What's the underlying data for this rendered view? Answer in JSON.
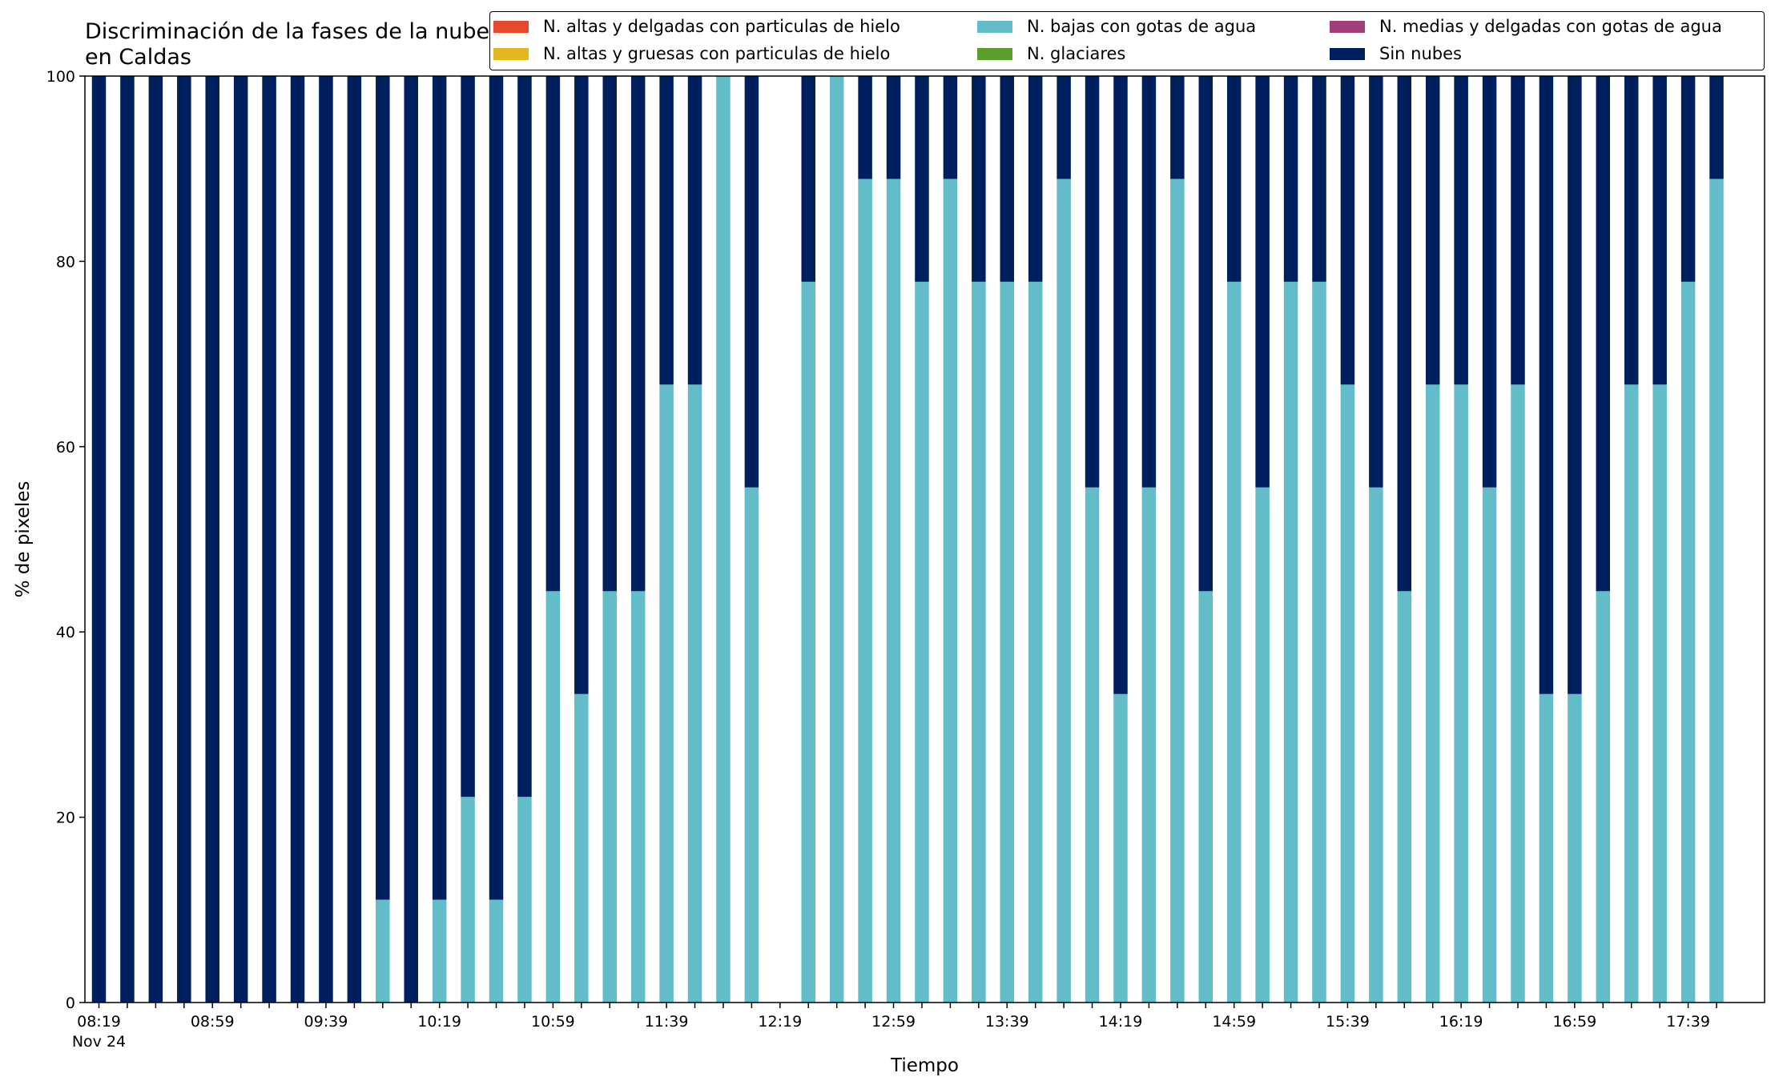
{
  "chart_data": {
    "type": "bar",
    "stacked": true,
    "title": "Discriminación de la fases de la nube en Caldas",
    "xlabel": "Tiempo",
    "ylabel": "% de pixeles",
    "ylim": [
      0,
      100
    ],
    "yticks": [
      0,
      20,
      40,
      60,
      80,
      100
    ],
    "x_start_label_sub": "Nov 24",
    "categories": [
      "08:19",
      "08:29",
      "08:39",
      "08:49",
      "08:59",
      "09:09",
      "09:19",
      "09:29",
      "09:39",
      "09:49",
      "09:59",
      "10:09",
      "10:19",
      "10:29",
      "10:39",
      "10:49",
      "10:59",
      "11:09",
      "11:19",
      "11:29",
      "11:39",
      "11:49",
      "11:59",
      "12:09",
      "12:19",
      "12:29",
      "12:39",
      "12:49",
      "12:59",
      "13:09",
      "13:19",
      "13:29",
      "13:39",
      "13:49",
      "13:59",
      "14:09",
      "14:19",
      "14:29",
      "14:39",
      "14:49",
      "14:59",
      "15:09",
      "15:19",
      "15:29",
      "15:39",
      "15:49",
      "15:59",
      "16:09",
      "16:19",
      "16:29",
      "16:39",
      "16:49",
      "16:59",
      "17:09",
      "17:19",
      "17:29",
      "17:39",
      "17:49"
    ],
    "x_tick_labels_shown": [
      "08:19",
      "08:59",
      "09:39",
      "10:19",
      "10:59",
      "11:39",
      "12:19",
      "12:59",
      "13:39",
      "14:19",
      "14:59",
      "15:39",
      "16:19",
      "16:59",
      "17:39"
    ],
    "series": [
      {
        "name": "N. altas y delgadas con particulas de hielo",
        "color": "#e8492c",
        "values": [
          0,
          0,
          0,
          0,
          0,
          0,
          0,
          0,
          0,
          0,
          0,
          0,
          0,
          0,
          0,
          0,
          0,
          0,
          0,
          0,
          0,
          0,
          0,
          0,
          0,
          0,
          0,
          0,
          0,
          0,
          0,
          0,
          0,
          0,
          0,
          0,
          0,
          0,
          0,
          0,
          0,
          0,
          0,
          0,
          0,
          0,
          0,
          0,
          0,
          0,
          0,
          0,
          0,
          0,
          0,
          0,
          0,
          0
        ]
      },
      {
        "name": "N. altas y gruesas con particulas de hielo",
        "color": "#e3b71e",
        "values": [
          0,
          0,
          0,
          0,
          0,
          0,
          0,
          0,
          0,
          0,
          0,
          0,
          0,
          0,
          0,
          0,
          0,
          0,
          0,
          0,
          0,
          0,
          0,
          0,
          0,
          0,
          0,
          0,
          0,
          0,
          0,
          0,
          0,
          0,
          0,
          0,
          0,
          0,
          0,
          0,
          0,
          0,
          0,
          0,
          0,
          0,
          0,
          0,
          0,
          0,
          0,
          0,
          0,
          0,
          0,
          0,
          0,
          0
        ]
      },
      {
        "name": "N. bajas con gotas de agua",
        "color": "#63bdc9",
        "values": [
          0,
          0,
          0,
          0,
          0,
          0,
          0,
          0,
          0,
          0,
          11.1,
          0,
          11.1,
          22.2,
          11.1,
          22.2,
          44.4,
          33.3,
          44.4,
          44.4,
          66.7,
          66.7,
          100,
          55.6,
          null,
          77.8,
          100,
          88.9,
          88.9,
          77.8,
          88.9,
          77.8,
          77.8,
          77.8,
          88.9,
          55.6,
          33.3,
          55.6,
          88.9,
          44.4,
          77.8,
          55.6,
          77.8,
          77.8,
          66.7,
          55.6,
          44.4,
          66.7,
          66.7,
          55.6,
          66.7,
          33.3,
          33.3,
          44.4,
          66.7,
          66.7,
          77.8,
          88.9
        ]
      },
      {
        "name": "N. glaciares",
        "color": "#5b9e2c",
        "values": [
          0,
          0,
          0,
          0,
          0,
          0,
          0,
          0,
          0,
          0,
          0,
          0,
          0,
          0,
          0,
          0,
          0,
          0,
          0,
          0,
          0,
          0,
          0,
          0,
          0,
          0,
          0,
          0,
          0,
          0,
          0,
          0,
          0,
          0,
          0,
          0,
          0,
          0,
          0,
          0,
          0,
          0,
          0,
          0,
          0,
          0,
          0,
          0,
          0,
          0,
          0,
          0,
          0,
          0,
          0,
          0,
          0,
          0
        ]
      },
      {
        "name": "N. medias y delgadas con gotas de agua",
        "color": "#a0407a",
        "values": [
          0,
          0,
          0,
          0,
          0,
          0,
          0,
          0,
          0,
          0,
          0,
          0,
          0,
          0,
          0,
          0,
          0,
          0,
          0,
          0,
          0,
          0,
          0,
          0,
          0,
          0,
          0,
          0,
          0,
          0,
          0,
          0,
          0,
          0,
          0,
          0,
          0,
          0,
          0,
          0,
          0,
          0,
          0,
          0,
          0,
          0,
          0,
          0,
          0,
          0,
          0,
          0,
          0,
          0,
          0,
          0,
          0,
          0
        ]
      },
      {
        "name": "Sin nubes",
        "color": "#001f5f",
        "values": [
          100,
          100,
          100,
          100,
          100,
          100,
          100,
          100,
          100,
          100,
          88.9,
          100,
          88.9,
          77.8,
          88.9,
          77.8,
          55.6,
          66.7,
          55.6,
          55.6,
          33.3,
          33.3,
          0,
          44.4,
          null,
          22.2,
          0,
          11.1,
          11.1,
          22.2,
          11.1,
          22.2,
          22.2,
          22.2,
          11.1,
          44.4,
          66.7,
          44.4,
          11.1,
          55.6,
          22.2,
          44.4,
          22.2,
          22.2,
          33.3,
          44.4,
          55.6,
          33.3,
          33.3,
          44.4,
          33.3,
          66.7,
          66.7,
          55.6,
          33.3,
          33.3,
          22.2,
          11.1
        ]
      }
    ],
    "legend_position": "top-right",
    "legend_columns": 3,
    "grid": false
  }
}
